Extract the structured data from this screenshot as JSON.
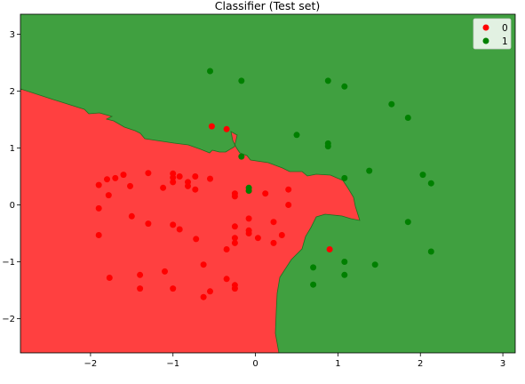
{
  "chart_data": {
    "type": "scatter",
    "title": "Classifier (Test set)",
    "xlabel": "",
    "ylabel": "",
    "xlim": [
      -2.85,
      3.15
    ],
    "ylim": [
      -2.6,
      3.35
    ],
    "xticks": [
      -2,
      -1,
      0,
      1,
      2,
      3
    ],
    "yticks": [
      -2,
      -1,
      0,
      1,
      2,
      3
    ],
    "xtick_labels": [
      "−2",
      "−1",
      "0",
      "1",
      "2",
      "3"
    ],
    "ytick_labels": [
      "−2",
      "−1",
      "0",
      "1",
      "2",
      "3"
    ],
    "grid": false,
    "legend_placement": "top-right",
    "region_colors": {
      "0": "#ff4040",
      "1": "#40a040"
    },
    "series": [
      {
        "name": "0",
        "color": "#ff0000",
        "points": [
          [
            -0.53,
            1.38
          ],
          [
            -0.35,
            1.33
          ],
          [
            -1.9,
            0.35
          ],
          [
            -1.8,
            0.45
          ],
          [
            -1.7,
            0.47
          ],
          [
            -1.6,
            0.53
          ],
          [
            -1.78,
            0.17
          ],
          [
            -1.52,
            0.33
          ],
          [
            -1.3,
            0.56
          ],
          [
            -1.12,
            0.3
          ],
          [
            -1.0,
            0.55
          ],
          [
            -1.0,
            0.48
          ],
          [
            -1.0,
            0.4
          ],
          [
            -0.92,
            0.5
          ],
          [
            -0.82,
            0.4
          ],
          [
            -0.82,
            0.33
          ],
          [
            -0.73,
            0.5
          ],
          [
            -0.73,
            0.27
          ],
          [
            -0.55,
            0.46
          ],
          [
            -0.25,
            0.2
          ],
          [
            -0.25,
            0.15
          ],
          [
            -0.08,
            0.25
          ],
          [
            0.12,
            0.2
          ],
          [
            0.4,
            0.27
          ],
          [
            0.4,
            0.0
          ],
          [
            -1.9,
            -0.06
          ],
          [
            -1.5,
            -0.2
          ],
          [
            -1.3,
            -0.33
          ],
          [
            -1.0,
            -0.35
          ],
          [
            -0.92,
            -0.43
          ],
          [
            -0.72,
            -0.6
          ],
          [
            -0.25,
            -0.38
          ],
          [
            -0.08,
            -0.24
          ],
          [
            -0.08,
            -0.45
          ],
          [
            -0.08,
            -0.5
          ],
          [
            0.22,
            -0.3
          ],
          [
            0.32,
            -0.53
          ],
          [
            0.03,
            -0.58
          ],
          [
            0.22,
            -0.67
          ],
          [
            -0.25,
            -0.58
          ],
          [
            -0.25,
            -0.67
          ],
          [
            -0.35,
            -0.78
          ],
          [
            -1.9,
            -0.53
          ],
          [
            0.9,
            -0.78
          ],
          [
            -0.63,
            -1.05
          ],
          [
            -1.1,
            -1.17
          ],
          [
            -1.4,
            -1.23
          ],
          [
            -1.77,
            -1.28
          ],
          [
            -0.35,
            -1.3
          ],
          [
            -0.25,
            -1.41
          ],
          [
            -0.25,
            -1.47
          ],
          [
            -1.4,
            -1.47
          ],
          [
            -1.0,
            -1.47
          ],
          [
            -0.55,
            -1.52
          ],
          [
            -0.63,
            -1.62
          ]
        ]
      },
      {
        "name": "1",
        "color": "#008000",
        "points": [
          [
            -0.55,
            2.35
          ],
          [
            -0.17,
            2.18
          ],
          [
            0.88,
            2.18
          ],
          [
            1.08,
            2.08
          ],
          [
            1.65,
            1.77
          ],
          [
            1.85,
            1.53
          ],
          [
            0.5,
            1.23
          ],
          [
            0.88,
            1.08
          ],
          [
            0.88,
            1.03
          ],
          [
            -0.17,
            0.85
          ],
          [
            1.38,
            0.6
          ],
          [
            2.03,
            0.53
          ],
          [
            1.08,
            0.47
          ],
          [
            2.13,
            0.38
          ],
          [
            -0.08,
            0.3
          ],
          [
            -0.08,
            0.25
          ],
          [
            1.85,
            -0.3
          ],
          [
            2.13,
            -0.82
          ],
          [
            1.08,
            -1.0
          ],
          [
            1.45,
            -1.05
          ],
          [
            0.7,
            -1.1
          ],
          [
            1.08,
            -1.23
          ],
          [
            0.7,
            -1.4
          ]
        ]
      }
    ]
  }
}
